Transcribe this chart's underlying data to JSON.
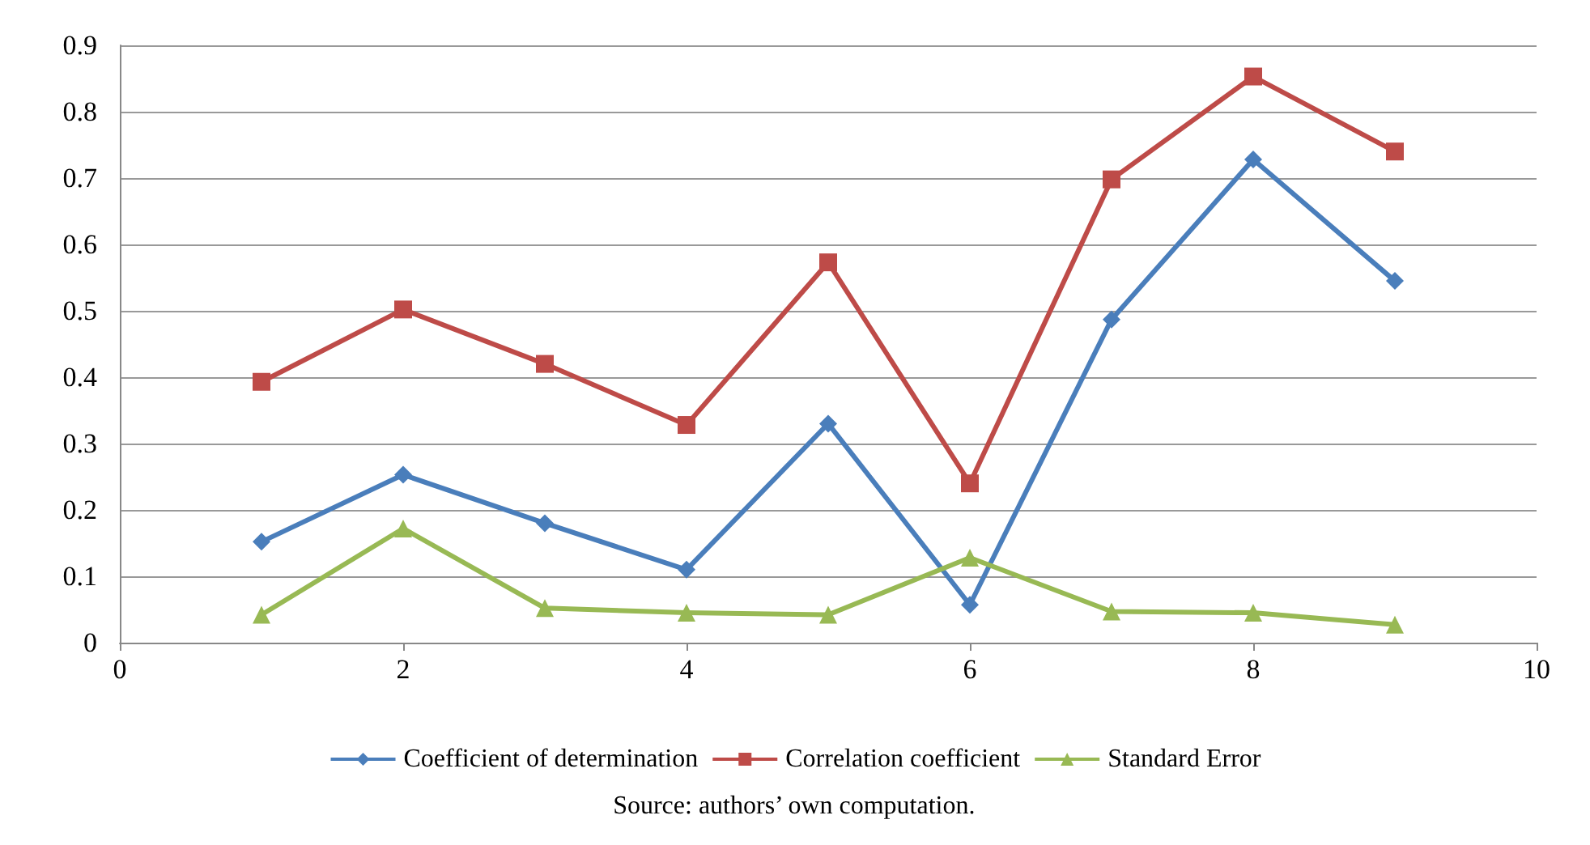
{
  "chart_data": {
    "type": "line",
    "x": [
      1,
      2,
      3,
      4,
      5,
      6,
      7,
      8,
      9
    ],
    "series": [
      {
        "name": "Coefficient of determination",
        "color": "#4a7ebb",
        "marker": "diamond",
        "values": [
          0.152,
          0.253,
          0.18,
          0.11,
          0.33,
          0.057,
          0.487,
          0.728,
          0.545
        ]
      },
      {
        "name": "Correlation coefficient",
        "color": "#be4b48",
        "marker": "square",
        "values": [
          0.393,
          0.502,
          0.42,
          0.328,
          0.573,
          0.24,
          0.698,
          0.853,
          0.74
        ]
      },
      {
        "name": "Standard Error",
        "color": "#98b954",
        "marker": "triangle",
        "values": [
          0.042,
          0.172,
          0.052,
          0.045,
          0.042,
          0.128,
          0.047,
          0.045,
          0.027
        ]
      }
    ],
    "xlim": [
      0,
      10
    ],
    "xticks": [
      0,
      2,
      4,
      6,
      8,
      10
    ],
    "ylim": [
      0,
      0.9
    ],
    "yticks": [
      0,
      0.1,
      0.2,
      0.3,
      0.4,
      0.5,
      0.6,
      0.7,
      0.8,
      0.9
    ],
    "grid": "y",
    "legend": "bottom",
    "annotations": [
      "Source: authors’ own computation."
    ]
  }
}
